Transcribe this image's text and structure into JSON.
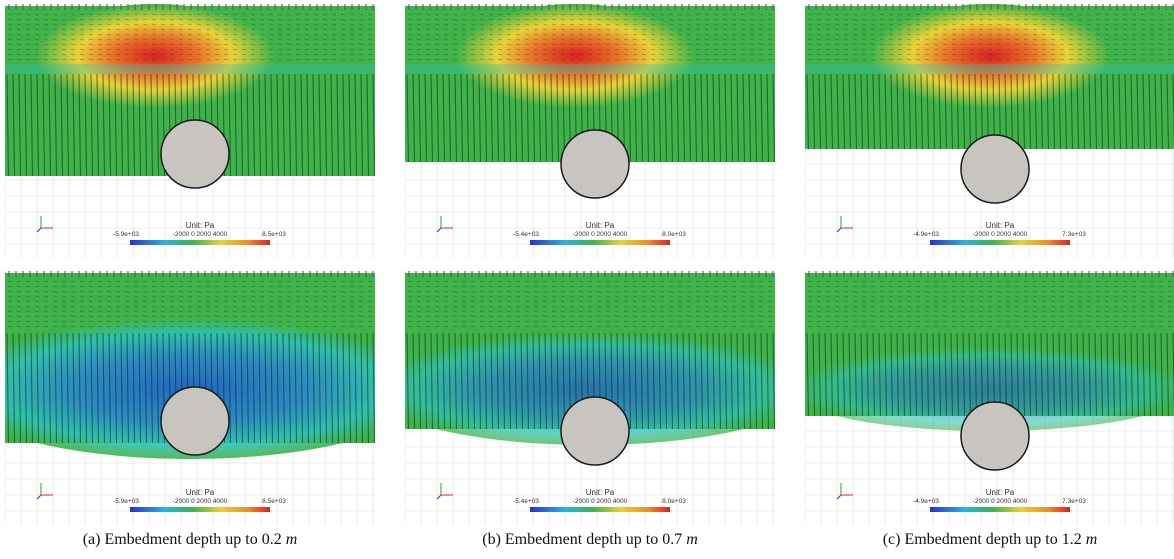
{
  "figure": {
    "columns": [
      {
        "caption_prefix": "(a) Embedment depth up to 0.2",
        "caption_unit": "m",
        "panels": [
          {
            "unit_label": "Unit: Pa",
            "min_label": "-5.9e+03",
            "ticks": [
              "-2000",
              "0",
              "2000",
              "4000"
            ],
            "max_label": "8.5e+03",
            "field": "hot"
          },
          {
            "unit_label": "Unit: Pa",
            "min_label": "-5.9e+03",
            "ticks": [
              "-2000",
              "0",
              "2000",
              "4000"
            ],
            "max_label": "8.5e+03",
            "field": "cold"
          }
        ]
      },
      {
        "caption_prefix": "(b) Embedment depth up to 0.7",
        "caption_unit": "m",
        "panels": [
          {
            "unit_label": "Unit: Pa",
            "min_label": "-5.4e+03",
            "ticks": [
              "-2000",
              "0",
              "2000",
              "4000"
            ],
            "max_label": "8.0e+03",
            "field": "hot"
          },
          {
            "unit_label": "Unit: Pa",
            "min_label": "-5.4e+03",
            "ticks": [
              "-2000",
              "0",
              "2000",
              "4000"
            ],
            "max_label": "8.0e+03",
            "field": "cold"
          }
        ]
      },
      {
        "caption_prefix": "(c) Embedment depth up to 1.2",
        "caption_unit": "m",
        "panels": [
          {
            "unit_label": "Unit: Pa",
            "min_label": "-4.9e+03",
            "ticks": [
              "-2000",
              "0",
              "2000",
              "4000"
            ],
            "max_label": "7.3e+03",
            "field": "hot"
          },
          {
            "unit_label": "Unit: Pa",
            "min_label": "-4.9e+03",
            "ticks": [
              "-2000",
              "0",
              "2000",
              "4000"
            ],
            "max_label": "7.3e+03",
            "field": "cold"
          }
        ]
      }
    ],
    "colors": {
      "soil_green": "#3fb24a",
      "hot_red": "#d8231f",
      "hot_yellow": "#e8d23a",
      "cold_blue": "#1f5fd0",
      "cold_cyan": "#2fc2b6",
      "pipe_gray": "#c8c4bf",
      "grid_line": "#d9d9d9"
    }
  }
}
